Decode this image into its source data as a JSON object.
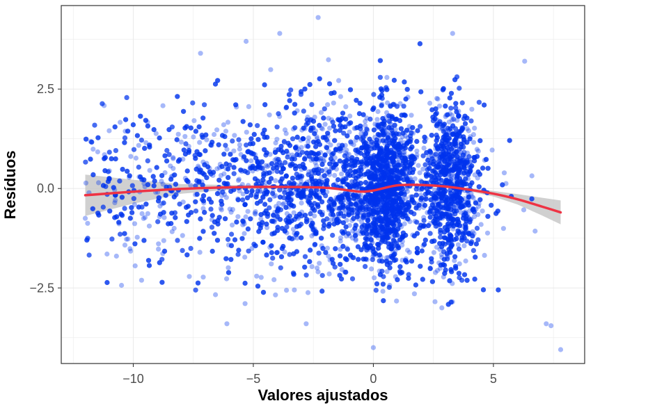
{
  "chart_data": {
    "type": "scatter",
    "title": "",
    "xlabel": "Valores ajustados",
    "ylabel": "Resíduos",
    "xlim": [
      -13,
      8.8
    ],
    "ylim": [
      -4.4,
      4.6
    ],
    "x_ticks": [
      -10,
      -5,
      0,
      5
    ],
    "x_tick_labels": [
      "−10",
      "−5",
      "0",
      "5"
    ],
    "y_ticks": [
      -2.5,
      0,
      2.5
    ],
    "y_tick_labels": [
      "−2.5",
      "0.0",
      "2.5"
    ],
    "grid": true,
    "legend": "none",
    "series": [
      {
        "kind": "points",
        "color": "#0033ee",
        "opacity": 0.35,
        "count": 9000,
        "clusters": [
          {
            "x_center": -5,
            "x_spread": 4.5,
            "weight": 0.28
          },
          {
            "x_center": -1.5,
            "x_spread": 1.8,
            "weight": 0.22
          },
          {
            "x_center": 0.6,
            "x_spread": 0.55,
            "weight": 0.28
          },
          {
            "x_center": 3.2,
            "x_spread": 0.6,
            "weight": 0.22
          }
        ],
        "y_sd": 1.0,
        "sample_points": [
          {
            "x": -2.3,
            "y": 4.3
          },
          {
            "x": -3.9,
            "y": 3.9
          },
          {
            "x": 3.3,
            "y": 3.9
          },
          {
            "x": -5.3,
            "y": 3.7
          },
          {
            "x": -7.2,
            "y": 3.4
          },
          {
            "x": 6.3,
            "y": 3.2
          },
          {
            "x": -12.0,
            "y": -0.75
          },
          {
            "x": -10.7,
            "y": -1.7
          },
          {
            "x": -2.8,
            "y": -3.4
          },
          {
            "x": 0.0,
            "y": -4.0
          },
          {
            "x": 7.2,
            "y": -3.4
          },
          {
            "x": 7.8,
            "y": -4.05
          },
          {
            "x": 7.4,
            "y": -3.45
          },
          {
            "x": -6.1,
            "y": -3.4
          },
          {
            "x": -11.2,
            "y": 0.85
          }
        ]
      },
      {
        "kind": "smooth",
        "color": "#ee3344",
        "band_color": "#c8c8c8",
        "x": [
          -12,
          -10,
          -8,
          -6,
          -4,
          -2,
          -1,
          -0.5,
          0,
          1,
          2,
          3,
          4,
          5,
          6,
          7,
          7.8
        ],
        "y": [
          -0.17,
          -0.08,
          -0.01,
          0.03,
          0.04,
          0.02,
          -0.05,
          -0.08,
          -0.05,
          0.08,
          0.09,
          0.05,
          -0.03,
          -0.13,
          -0.27,
          -0.45,
          -0.6
        ],
        "band_halfwidth": [
          0.52,
          0.3,
          0.12,
          0.06,
          0.04,
          0.03,
          0.03,
          0.03,
          0.02,
          0.02,
          0.03,
          0.03,
          0.04,
          0.07,
          0.13,
          0.22,
          0.3
        ]
      }
    ]
  }
}
